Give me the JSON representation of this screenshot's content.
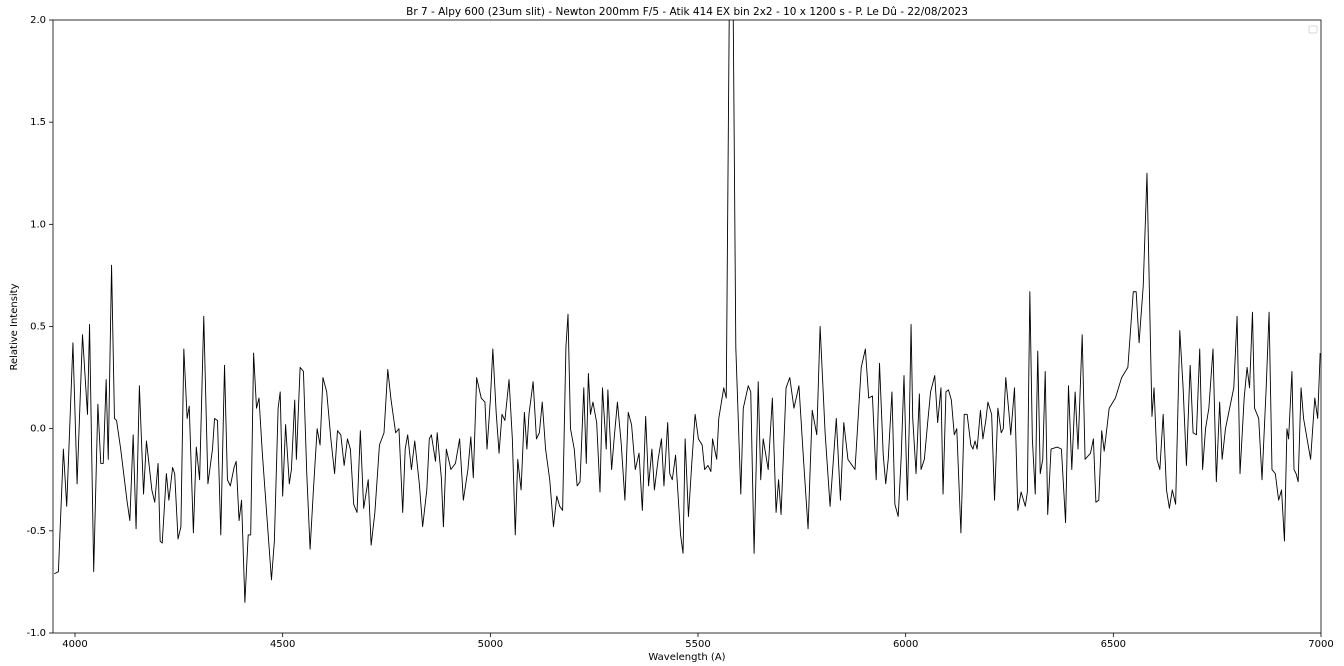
{
  "chart_data": {
    "type": "line",
    "title": "Br 7 - Alpy 600 (23um slit) - Newton 200mm F/5 - Atik 414 EX bin 2x2 - 10 x 1200 s - P. Le Dû - 22/08/2023",
    "x_label": "Wavelength (A)",
    "y_label": "Relative Intensity",
    "color": "#000000",
    "xlim": [
      3947,
      7000
    ],
    "ylim": [
      -1.0,
      2.0
    ],
    "xticks": [
      4000,
      4500,
      5000,
      5500,
      6000,
      6500,
      7000
    ],
    "yticks": [
      {
        "value": -1.0,
        "label": "-1.0"
      },
      {
        "value": -0.5,
        "label": "-0.5"
      },
      {
        "value": 0.0,
        "label": "0.0"
      },
      {
        "value": 0.5,
        "label": "0.5"
      },
      {
        "value": 1.0,
        "label": "1.0"
      },
      {
        "value": 1.5,
        "label": "1.5"
      },
      {
        "value": 2.0,
        "label": "2.0"
      }
    ],
    "x": [
      3950,
      3960,
      3972,
      3980,
      3995,
      4005,
      4018,
      4030,
      4035,
      4045,
      4055,
      4062,
      4068,
      4075,
      4080,
      4088,
      4095,
      4100,
      4110,
      4125,
      4132,
      4140,
      4147,
      4155,
      4165,
      4172,
      4185,
      4192,
      4200,
      4205,
      4210,
      4220,
      4226,
      4235,
      4240,
      4248,
      4255,
      4262,
      4270,
      4275,
      4285,
      4292,
      4300,
      4310,
      4320,
      4331,
      4336,
      4343,
      4351,
      4360,
      4367,
      4374,
      4383,
      4388,
      4395,
      4401,
      4409,
      4417,
      4423,
      4430,
      4437,
      4443,
      4451,
      4462,
      4473,
      4480,
      4489,
      4494,
      4500,
      4507,
      4516,
      4521,
      4529,
      4533,
      4542,
      4550,
      4558,
      4566,
      4574,
      4583,
      4590,
      4597,
      4606,
      4616,
      4625,
      4632,
      4640,
      4648,
      4656,
      4663,
      4671,
      4679,
      4687,
      4695,
      4706,
      4713,
      4722,
      4733,
      4744,
      4753,
      4761,
      4772,
      4780,
      4789,
      4795,
      4801,
      4810,
      4818,
      4829,
      4837,
      4847,
      4853,
      4858,
      4868,
      4872,
      4882,
      4887,
      4894,
      4905,
      4916,
      4926,
      4935,
      4946,
      4953,
      4959,
      4967,
      4978,
      4987,
      4992,
      5000,
      5006,
      5014,
      5021,
      5028,
      5035,
      5045,
      5053,
      5060,
      5066,
      5074,
      5082,
      5088,
      5093,
      5103,
      5111,
      5118,
      5125,
      5133,
      5143,
      5152,
      5160,
      5167,
      5174,
      5182,
      5187,
      5193,
      5202,
      5209,
      5216,
      5225,
      5231,
      5236,
      5241,
      5247,
      5256,
      5264,
      5270,
      5279,
      5283,
      5292,
      5298,
      5306,
      5315,
      5324,
      5332,
      5340,
      5349,
      5358,
      5366,
      5374,
      5381,
      5389,
      5395,
      5404,
      5412,
      5418,
      5427,
      5432,
      5438,
      5446,
      5458,
      5464,
      5469,
      5477,
      5485,
      5493,
      5501,
      5510,
      5516,
      5524,
      5531,
      5535,
      5545,
      5550,
      5562,
      5568,
      5577,
      5583,
      5591,
      5603,
      5609,
      5621,
      5627,
      5635,
      5645,
      5651,
      5657,
      5669,
      5679,
      5688,
      5694,
      5700,
      5712,
      5721,
      5731,
      5743,
      5754,
      5765,
      5775,
      5786,
      5794,
      5806,
      5818,
      5833,
      5843,
      5851,
      5861,
      5878,
      5893,
      5903,
      5911,
      5920,
      5929,
      5937,
      5946,
      5952,
      5958,
      5967,
      5974,
      5982,
      5989,
      5996,
      6004,
      6009,
      6013,
      6017,
      6025,
      6033,
      6037,
      6045,
      6053,
      6060,
      6070,
      6077,
      6085,
      6090,
      6097,
      6103,
      6110,
      6117,
      6123,
      6133,
      6141,
      6148,
      6157,
      6162,
      6167,
      6172,
      6180,
      6186,
      6193,
      6198,
      6207,
      6214,
      6222,
      6230,
      6235,
      6241,
      6249,
      6253,
      6262,
      6270,
      6278,
      6288,
      6293,
      6299,
      6305,
      6312,
      6318,
      6324,
      6330,
      6336,
      6342,
      6350,
      6365,
      6375,
      6385,
      6392,
      6400,
      6408,
      6415,
      6425,
      6432,
      6445,
      6452,
      6458,
      6465,
      6472,
      6478,
      6490,
      6505,
      6520,
      6535,
      6548,
      6555,
      6562,
      6572,
      6581,
      6593,
      6598,
      6605,
      6612,
      6620,
      6628,
      6635,
      6642,
      6650,
      6660,
      6668,
      6676,
      6685,
      6692,
      6700,
      6708,
      6715,
      6722,
      6730,
      6740,
      6748,
      6756,
      6762,
      6770,
      6780,
      6790,
      6798,
      6805,
      6815,
      6822,
      6828,
      6835,
      6840,
      6850,
      6858,
      6868,
      6875,
      6882,
      6890,
      6898,
      6905,
      6912,
      6918,
      6922,
      6930,
      6935,
      6940,
      6945,
      6952,
      6958,
      6975,
      6985,
      6992,
      6998
    ],
    "values": [
      -0.71,
      -0.7,
      -0.1,
      -0.38,
      0.42,
      -0.27,
      0.46,
      0.07,
      0.51,
      -0.7,
      0.12,
      -0.17,
      -0.17,
      0.24,
      -0.15,
      0.8,
      0.05,
      0.04,
      -0.1,
      -0.35,
      -0.45,
      -0.03,
      -0.49,
      0.21,
      -0.32,
      -0.06,
      -0.3,
      -0.36,
      -0.17,
      -0.55,
      -0.56,
      -0.22,
      -0.35,
      -0.19,
      -0.22,
      -0.54,
      -0.48,
      0.39,
      0.05,
      0.11,
      -0.51,
      -0.09,
      -0.25,
      0.55,
      -0.27,
      -0.1,
      0.05,
      0.04,
      -0.52,
      0.31,
      -0.25,
      -0.28,
      -0.19,
      -0.16,
      -0.45,
      -0.35,
      -0.85,
      -0.52,
      -0.52,
      0.37,
      0.1,
      0.15,
      -0.12,
      -0.43,
      -0.74,
      -0.55,
      0.1,
      0.18,
      -0.33,
      0.02,
      -0.27,
      -0.2,
      0.14,
      -0.15,
      0.3,
      0.28,
      -0.22,
      -0.59,
      -0.3,
      0.0,
      -0.08,
      0.25,
      0.18,
      -0.05,
      -0.22,
      -0.01,
      -0.03,
      -0.18,
      -0.05,
      -0.1,
      -0.37,
      -0.41,
      -0.01,
      -0.39,
      -0.25,
      -0.57,
      -0.41,
      -0.08,
      -0.02,
      0.29,
      0.14,
      -0.02,
      0.0,
      -0.41,
      -0.1,
      -0.03,
      -0.2,
      -0.06,
      -0.27,
      -0.48,
      -0.3,
      -0.05,
      -0.03,
      -0.16,
      -0.02,
      -0.24,
      -0.48,
      -0.1,
      -0.2,
      -0.17,
      -0.05,
      -0.35,
      -0.2,
      -0.04,
      -0.24,
      0.25,
      0.15,
      0.13,
      -0.1,
      0.14,
      0.39,
      0.08,
      -0.12,
      0.07,
      0.04,
      0.24,
      -0.05,
      -0.52,
      -0.15,
      -0.3,
      0.08,
      -0.1,
      0.07,
      0.23,
      -0.05,
      -0.02,
      0.13,
      -0.1,
      -0.25,
      -0.48,
      -0.33,
      -0.38,
      -0.4,
      0.4,
      0.56,
      0.0,
      -0.1,
      -0.28,
      -0.26,
      0.2,
      -0.17,
      0.27,
      0.07,
      0.13,
      0.03,
      -0.31,
      0.2,
      -0.1,
      0.19,
      -0.2,
      -0.05,
      0.13,
      -0.07,
      -0.35,
      0.08,
      0.02,
      -0.2,
      -0.12,
      -0.4,
      0.06,
      -0.28,
      -0.1,
      -0.3,
      -0.15,
      -0.05,
      -0.28,
      0.03,
      -0.22,
      -0.25,
      -0.13,
      -0.52,
      -0.61,
      -0.05,
      -0.43,
      -0.17,
      0.07,
      -0.05,
      -0.08,
      -0.2,
      -0.18,
      -0.21,
      -0.05,
      -0.15,
      0.05,
      0.2,
      0.15,
      2.5,
      2.5,
      0.4,
      -0.32,
      0.1,
      0.21,
      0.18,
      -0.61,
      0.23,
      -0.25,
      -0.05,
      -0.2,
      0.15,
      -0.41,
      -0.25,
      -0.42,
      0.2,
      0.25,
      0.1,
      0.21,
      -0.15,
      -0.49,
      0.09,
      -0.03,
      0.5,
      -0.02,
      -0.38,
      0.05,
      -0.35,
      0.03,
      -0.15,
      -0.2,
      0.3,
      0.39,
      0.15,
      0.16,
      -0.25,
      0.32,
      -0.13,
      -0.27,
      -0.15,
      0.18,
      -0.37,
      -0.43,
      -0.15,
      0.26,
      -0.35,
      0.05,
      0.51,
      0.05,
      -0.22,
      0.17,
      -0.2,
      -0.15,
      0.03,
      0.18,
      0.26,
      0.03,
      0.2,
      -0.32,
      0.18,
      0.19,
      0.14,
      -0.03,
      0.0,
      -0.51,
      0.07,
      0.07,
      -0.08,
      -0.1,
      -0.06,
      -0.1,
      0.09,
      -0.05,
      0.04,
      0.13,
      0.07,
      -0.35,
      0.1,
      -0.02,
      0.0,
      0.25,
      0.07,
      -0.03,
      0.2,
      -0.4,
      -0.31,
      -0.38,
      -0.31,
      0.67,
      -0.05,
      -0.32,
      0.38,
      -0.22,
      -0.15,
      0.28,
      -0.42,
      -0.1,
      -0.09,
      -0.1,
      -0.46,
      0.21,
      -0.2,
      0.18,
      -0.1,
      0.46,
      -0.15,
      -0.12,
      -0.05,
      -0.36,
      -0.35,
      -0.01,
      -0.11,
      0.1,
      0.15,
      0.25,
      0.3,
      0.67,
      0.67,
      0.42,
      0.7,
      1.25,
      0.06,
      0.2,
      -0.15,
      -0.2,
      0.07,
      -0.3,
      -0.39,
      -0.3,
      -0.37,
      0.48,
      0.2,
      -0.18,
      0.31,
      -0.02,
      -0.03,
      0.39,
      -0.2,
      0.0,
      0.1,
      0.39,
      -0.26,
      0.13,
      -0.15,
      0.0,
      0.1,
      0.2,
      0.55,
      -0.22,
      0.15,
      0.3,
      0.2,
      0.57,
      0.1,
      0.05,
      -0.25,
      0.2,
      0.57,
      -0.2,
      -0.22,
      -0.35,
      -0.3,
      -0.55,
      0.0,
      -0.05,
      0.28,
      -0.2,
      -0.22,
      -0.26,
      0.2,
      0.05,
      -0.15,
      0.15,
      0.05,
      0.37
    ]
  }
}
